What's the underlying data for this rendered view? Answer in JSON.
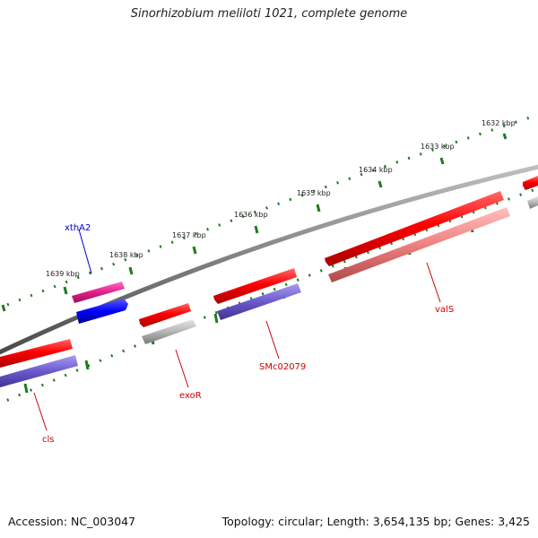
{
  "title": "Sinorhizobium meliloti 1021, complete genome",
  "footer": {
    "accession": "Accession: NC_003047",
    "info": "Topology: circular; Length: 3,654,135 bp; Genes: 3,425"
  },
  "colors": {
    "backbone": "#808080",
    "tick": "#1f7a1f",
    "feature_red": "#ff0000",
    "feature_pink": "#e0208a",
    "feature_blue": "#0000ff",
    "feature_purple": "#6a5acd",
    "feature_grey": "#b4b4b4",
    "feature_salmon": "#f08080",
    "label_red": "#cc0000",
    "label_blue": "#0000cc"
  },
  "kbp_labels": [
    {
      "text": "1632 kbp"
    },
    {
      "text": "1633 kbp"
    },
    {
      "text": "1634 kbp"
    },
    {
      "text": "1635 kbp"
    },
    {
      "text": "1636 kbp"
    },
    {
      "text": "1637 kbp"
    },
    {
      "text": "1638 kbp"
    },
    {
      "text": "1639 kbp"
    }
  ],
  "gene_labels": [
    {
      "text": "xthA2",
      "color": "label_blue"
    },
    {
      "text": "exoR",
      "color": "label_red"
    },
    {
      "text": "SMc02079",
      "color": "label_red"
    },
    {
      "text": "valS",
      "color": "label_red"
    },
    {
      "text": "cls",
      "color": "label_red"
    }
  ]
}
